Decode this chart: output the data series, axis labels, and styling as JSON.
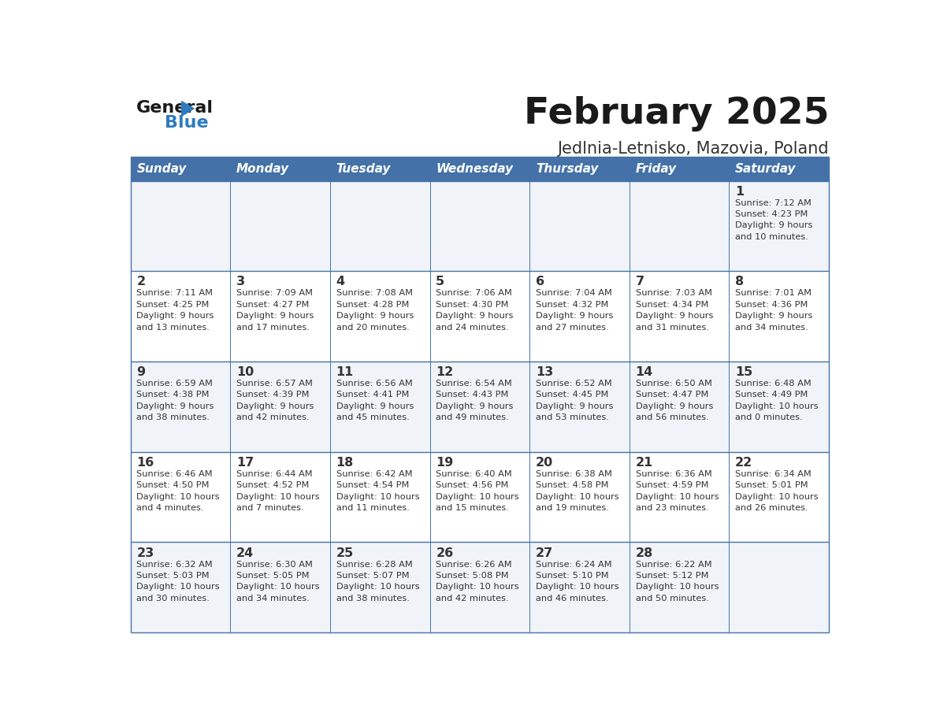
{
  "title": "February 2025",
  "subtitle": "Jedlnia-Letnisko, Mazovia, Poland",
  "header_bg_color": "#4472A8",
  "header_text_color": "#FFFFFF",
  "weekdays": [
    "Sunday",
    "Monday",
    "Tuesday",
    "Wednesday",
    "Thursday",
    "Friday",
    "Saturday"
  ],
  "row_bg_even": "#F0F4F8",
  "row_bg_odd": "#FFFFFF",
  "cell_border_color": "#4472A8",
  "day_num_color": "#333333",
  "info_text_color": "#333333",
  "title_color": "#1a1a1a",
  "subtitle_color": "#333333",
  "logo_general_color": "#1a1a1a",
  "logo_blue_color": "#2E7BBF",
  "calendar_data": [
    [
      {
        "day": 0,
        "info": ""
      },
      {
        "day": 0,
        "info": ""
      },
      {
        "day": 0,
        "info": ""
      },
      {
        "day": 0,
        "info": ""
      },
      {
        "day": 0,
        "info": ""
      },
      {
        "day": 0,
        "info": ""
      },
      {
        "day": 1,
        "info": "Sunrise: 7:12 AM\nSunset: 4:23 PM\nDaylight: 9 hours\nand 10 minutes."
      }
    ],
    [
      {
        "day": 2,
        "info": "Sunrise: 7:11 AM\nSunset: 4:25 PM\nDaylight: 9 hours\nand 13 minutes."
      },
      {
        "day": 3,
        "info": "Sunrise: 7:09 AM\nSunset: 4:27 PM\nDaylight: 9 hours\nand 17 minutes."
      },
      {
        "day": 4,
        "info": "Sunrise: 7:08 AM\nSunset: 4:28 PM\nDaylight: 9 hours\nand 20 minutes."
      },
      {
        "day": 5,
        "info": "Sunrise: 7:06 AM\nSunset: 4:30 PM\nDaylight: 9 hours\nand 24 minutes."
      },
      {
        "day": 6,
        "info": "Sunrise: 7:04 AM\nSunset: 4:32 PM\nDaylight: 9 hours\nand 27 minutes."
      },
      {
        "day": 7,
        "info": "Sunrise: 7:03 AM\nSunset: 4:34 PM\nDaylight: 9 hours\nand 31 minutes."
      },
      {
        "day": 8,
        "info": "Sunrise: 7:01 AM\nSunset: 4:36 PM\nDaylight: 9 hours\nand 34 minutes."
      }
    ],
    [
      {
        "day": 9,
        "info": "Sunrise: 6:59 AM\nSunset: 4:38 PM\nDaylight: 9 hours\nand 38 minutes."
      },
      {
        "day": 10,
        "info": "Sunrise: 6:57 AM\nSunset: 4:39 PM\nDaylight: 9 hours\nand 42 minutes."
      },
      {
        "day": 11,
        "info": "Sunrise: 6:56 AM\nSunset: 4:41 PM\nDaylight: 9 hours\nand 45 minutes."
      },
      {
        "day": 12,
        "info": "Sunrise: 6:54 AM\nSunset: 4:43 PM\nDaylight: 9 hours\nand 49 minutes."
      },
      {
        "day": 13,
        "info": "Sunrise: 6:52 AM\nSunset: 4:45 PM\nDaylight: 9 hours\nand 53 minutes."
      },
      {
        "day": 14,
        "info": "Sunrise: 6:50 AM\nSunset: 4:47 PM\nDaylight: 9 hours\nand 56 minutes."
      },
      {
        "day": 15,
        "info": "Sunrise: 6:48 AM\nSunset: 4:49 PM\nDaylight: 10 hours\nand 0 minutes."
      }
    ],
    [
      {
        "day": 16,
        "info": "Sunrise: 6:46 AM\nSunset: 4:50 PM\nDaylight: 10 hours\nand 4 minutes."
      },
      {
        "day": 17,
        "info": "Sunrise: 6:44 AM\nSunset: 4:52 PM\nDaylight: 10 hours\nand 7 minutes."
      },
      {
        "day": 18,
        "info": "Sunrise: 6:42 AM\nSunset: 4:54 PM\nDaylight: 10 hours\nand 11 minutes."
      },
      {
        "day": 19,
        "info": "Sunrise: 6:40 AM\nSunset: 4:56 PM\nDaylight: 10 hours\nand 15 minutes."
      },
      {
        "day": 20,
        "info": "Sunrise: 6:38 AM\nSunset: 4:58 PM\nDaylight: 10 hours\nand 19 minutes."
      },
      {
        "day": 21,
        "info": "Sunrise: 6:36 AM\nSunset: 4:59 PM\nDaylight: 10 hours\nand 23 minutes."
      },
      {
        "day": 22,
        "info": "Sunrise: 6:34 AM\nSunset: 5:01 PM\nDaylight: 10 hours\nand 26 minutes."
      }
    ],
    [
      {
        "day": 23,
        "info": "Sunrise: 6:32 AM\nSunset: 5:03 PM\nDaylight: 10 hours\nand 30 minutes."
      },
      {
        "day": 24,
        "info": "Sunrise: 6:30 AM\nSunset: 5:05 PM\nDaylight: 10 hours\nand 34 minutes."
      },
      {
        "day": 25,
        "info": "Sunrise: 6:28 AM\nSunset: 5:07 PM\nDaylight: 10 hours\nand 38 minutes."
      },
      {
        "day": 26,
        "info": "Sunrise: 6:26 AM\nSunset: 5:08 PM\nDaylight: 10 hours\nand 42 minutes."
      },
      {
        "day": 27,
        "info": "Sunrise: 6:24 AM\nSunset: 5:10 PM\nDaylight: 10 hours\nand 46 minutes."
      },
      {
        "day": 28,
        "info": "Sunrise: 6:22 AM\nSunset: 5:12 PM\nDaylight: 10 hours\nand 50 minutes."
      },
      {
        "day": 0,
        "info": ""
      }
    ]
  ]
}
